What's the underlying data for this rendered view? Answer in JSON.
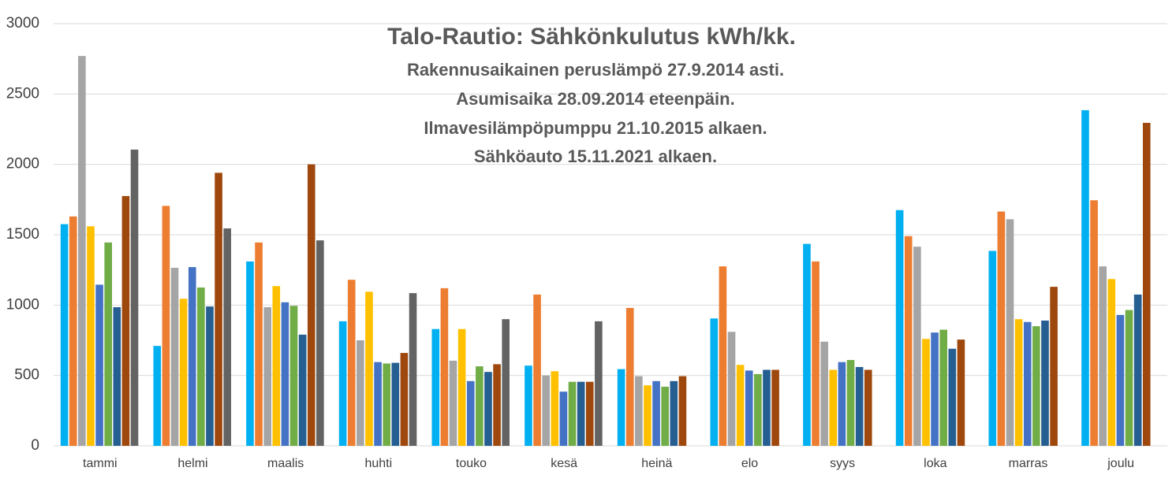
{
  "chart_data": {
    "type": "bar",
    "title": "Talo-Rautio: Sähkönkulutus kWh/kk.",
    "subtitle": [
      "Rakennusaikainen peruslämpö 27.9.2014 asti.",
      "Asumisaika 28.09.2014 eteenpäin.",
      "Ilmavesilämpöpumppu 21.10.2015 alkaen.",
      "Sähköauto 15.11.2021 alkaen."
    ],
    "categories": [
      "tammi",
      "helmi",
      "maalis",
      "huhti",
      "touko",
      "kesä",
      "heinä",
      "elo",
      "syys",
      "loka",
      "marras",
      "joulu"
    ],
    "series": [
      {
        "color": "#00b0f0",
        "values": [
          1575,
          710,
          1310,
          885,
          830,
          570,
          545,
          905,
          1435,
          1675,
          1385,
          2385
        ]
      },
      {
        "color": "#ed7d31",
        "values": [
          1630,
          1705,
          1445,
          1180,
          1120,
          1075,
          980,
          1275,
          1310,
          1490,
          1665,
          1745
        ]
      },
      {
        "color": "#a5a5a5",
        "values": [
          2770,
          1265,
          985,
          750,
          605,
          500,
          495,
          810,
          740,
          1415,
          1610,
          1275
        ]
      },
      {
        "color": "#ffc000",
        "values": [
          1560,
          1045,
          1135,
          1095,
          830,
          530,
          430,
          575,
          540,
          760,
          900,
          1185
        ]
      },
      {
        "color": "#4472c4",
        "values": [
          1145,
          1270,
          1020,
          595,
          460,
          385,
          460,
          535,
          595,
          805,
          880,
          930
        ]
      },
      {
        "color": "#70ad47",
        "values": [
          1445,
          1125,
          995,
          585,
          565,
          455,
          420,
          510,
          610,
          825,
          850,
          965
        ]
      },
      {
        "color": "#255e91",
        "values": [
          985,
          990,
          790,
          590,
          525,
          455,
          460,
          540,
          560,
          690,
          890,
          1075
        ]
      },
      {
        "color": "#9e480e",
        "values": [
          1775,
          1940,
          2000,
          660,
          580,
          455,
          495,
          540,
          540,
          755,
          1130,
          2295
        ]
      },
      {
        "color": "#636363",
        "values": [
          2105,
          1545,
          1460,
          1085,
          900,
          885,
          null,
          null,
          null,
          null,
          null,
          null
        ]
      }
    ],
    "ylim": [
      0,
      3000
    ],
    "yticks": [
      0,
      500,
      1000,
      1500,
      2000,
      2500,
      3000
    ],
    "grid": true
  }
}
